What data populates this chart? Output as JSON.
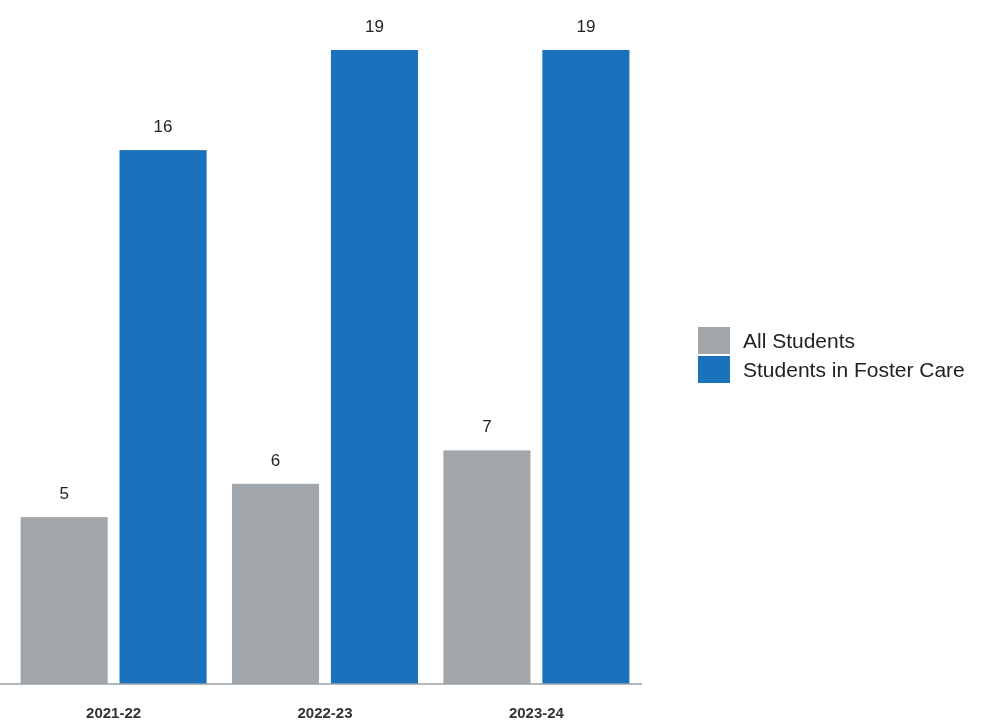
{
  "chart_data": {
    "type": "bar",
    "categories": [
      "2021-22",
      "2022-23",
      "2023-24"
    ],
    "series": [
      {
        "name": "All Students",
        "color": "#a2a7ab",
        "values": [
          5,
          6,
          7
        ]
      },
      {
        "name": "Students in Foster Care",
        "color": "#1b72bc",
        "values": [
          16,
          19,
          19
        ]
      }
    ],
    "data_labels": true,
    "legend": "right"
  }
}
